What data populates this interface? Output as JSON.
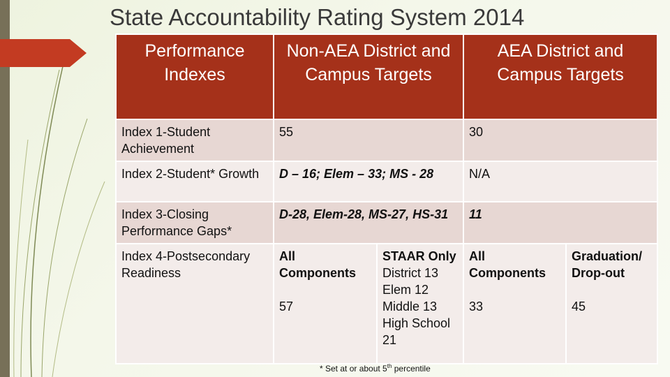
{
  "title": "State Accountability Rating System 2014",
  "colors": {
    "header_bg": "#a5311a",
    "row_dark": "#e7d7d3",
    "row_light": "#f3ecea",
    "accent": "#c33b22"
  },
  "table": {
    "headers": [
      "Performance Indexes",
      "Non-AEA District and Campus Targets",
      "AEA District and Campus Targets"
    ],
    "rows": [
      {
        "index": "Index 1-Student Achievement",
        "non_aea": "55",
        "aea": "30"
      },
      {
        "index": "Index 2-Student* Growth",
        "non_aea": "D – 16; Elem – 33; MS - 28",
        "aea": "N/A"
      },
      {
        "index": "Index 3-Closing Performance Gaps*",
        "non_aea": "D-28, Elem-28, MS-27, HS-31",
        "aea": "11"
      },
      {
        "index": "Index 4-Postsecondary Readiness",
        "non_aea_all_label": "All Components",
        "non_aea_all_value": "57",
        "staar_label": "STAAR Only",
        "staar_lines": [
          "District 13",
          "Elem 12",
          "Middle 13",
          "High School 21"
        ],
        "aea_all_label": "All Components",
        "aea_all_value": "33",
        "grad_label": "Graduation/ Drop-out",
        "grad_value": "45"
      }
    ]
  },
  "footnote": {
    "prefix": "* Set at or about 5",
    "sup": "th",
    "suffix": " percentile"
  }
}
